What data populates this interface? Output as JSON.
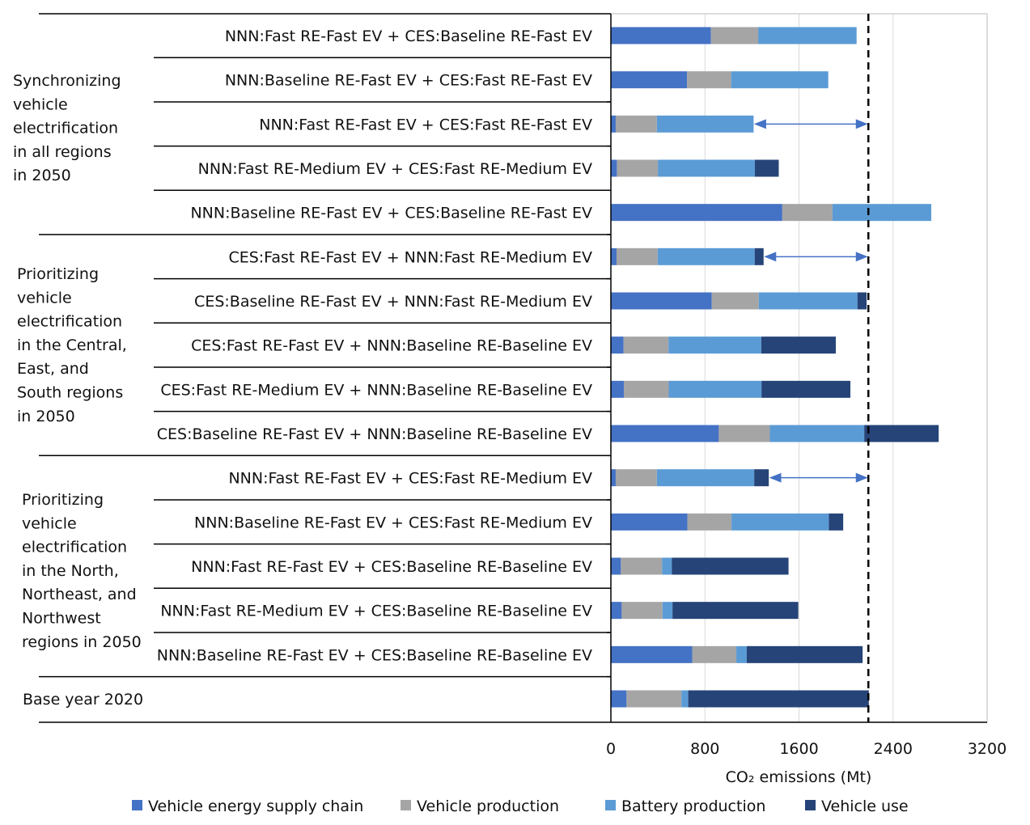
{
  "chart_data": {
    "type": "bar",
    "orientation": "horizontal",
    "stacked": true,
    "xlabel": "CO₂ emissions (Mt)",
    "xlim": [
      0,
      3200
    ],
    "xticks": [
      "0",
      "800",
      "1600",
      "2400",
      "3200"
    ],
    "grid": "vertical",
    "legend_position": "bottom",
    "reference_line": {
      "value": 2190,
      "style": "dashed"
    },
    "groups": [
      {
        "label": "Synchronizing vehicle electrification in all regions in 2050",
        "lines": [
          "Synchronizing",
          "vehicle",
          "electrification",
          "in all regions",
          "in 2050"
        ]
      },
      {
        "label": "Prioritizing vehicle electrification in the Central, East, and South regions in 2050",
        "lines": [
          "Prioritizing",
          "vehicle",
          "electrification",
          "in the Central,",
          "East, and",
          "South regions",
          "in 2050"
        ]
      },
      {
        "label": "Prioritizing vehicle electrification in the North, Northeast, and Northwest regions in 2050",
        "lines": [
          "Prioritizing",
          "vehicle",
          "electrification",
          "in the North,",
          "Northeast, and",
          "Northwest",
          "regions in 2050"
        ]
      },
      {
        "label": "Base year 2020",
        "lines": [
          "Base year 2020"
        ]
      }
    ],
    "categories": [
      "NNN:Fast RE-Fast EV + CES:Baseline RE-Fast EV",
      "NNN:Baseline RE-Fast EV + CES:Fast RE-Fast EV",
      "NNN:Fast RE-Fast EV + CES:Fast RE-Fast EV",
      "NNN:Fast RE-Medium EV + CES:Fast RE-Medium EV",
      "NNN:Baseline RE-Fast EV + CES:Baseline RE-Fast EV",
      "CES:Fast RE-Fast EV + NNN:Fast RE-Medium EV",
      "CES:Baseline RE-Fast EV + NNN:Fast RE-Medium EV",
      "CES:Fast RE-Fast EV + NNN:Baseline RE-Baseline EV",
      "CES:Fast RE-Medium EV + NNN:Baseline RE-Baseline EV",
      "CES:Baseline RE-Fast EV + NNN:Baseline RE-Baseline EV",
      "NNN:Fast RE-Fast EV + CES:Fast RE-Medium EV",
      "NNN:Baseline RE-Fast EV + CES:Fast RE-Medium EV",
      "NNN:Fast RE-Fast EV + CES:Baseline RE-Baseline EV",
      "NNN:Fast RE-Medium EV + CES:Baseline RE-Baseline EV",
      "NNN:Baseline RE-Fast EV + CES:Baseline RE-Baseline EV",
      ""
    ],
    "arrows_to_reference": [
      2,
      5,
      10
    ],
    "series": [
      {
        "name": "Vehicle energy supply chain",
        "color": "#4472c4",
        "values": [
          851,
          648,
          41,
          51,
          1458,
          48,
          858,
          108,
          110,
          918,
          41,
          651,
          85,
          92,
          692,
          133
        ]
      },
      {
        "name": "Vehicle production",
        "color": "#a5a5a5",
        "values": [
          402,
          375,
          350,
          349,
          427,
          350,
          400,
          382,
          382,
          434,
          350,
          375,
          350,
          347,
          375,
          467
        ]
      },
      {
        "name": "Battery production",
        "color": "#5b9bd5",
        "values": [
          837,
          826,
          823,
          825,
          840,
          825,
          839,
          789,
          789,
          803,
          828,
          828,
          83,
          85,
          88,
          58
        ]
      },
      {
        "name": "Vehicle use",
        "color": "#264478",
        "values": [
          0,
          0,
          0,
          203,
          0,
          76,
          78,
          634,
          756,
          633,
          124,
          122,
          993,
          1070,
          986,
          1536
        ]
      }
    ]
  }
}
